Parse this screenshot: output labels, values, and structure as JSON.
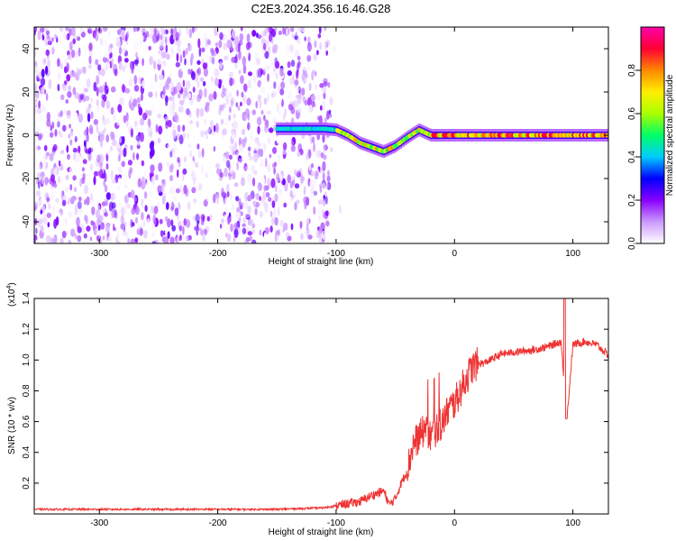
{
  "title": "C2E3.2024.356.16.46.G28",
  "chart_data": [
    {
      "type": "heatmap",
      "xlabel": "Height of straight line (km)",
      "ylabel": "Frequency (Hz)",
      "xlim": [
        -355,
        130
      ],
      "ylim": [
        -50,
        50
      ],
      "xticks": [
        -300,
        -200,
        -100,
        0,
        100
      ],
      "yticks": [
        -40,
        -20,
        0,
        20,
        40
      ],
      "colorbar": {
        "label": "Normalized spectral amplitude",
        "range": [
          0,
          1
        ],
        "ticks": [
          "0.0",
          "0.2",
          "0.4",
          "0.6",
          "0.8"
        ],
        "colors": [
          "#ffffff",
          "#cc99ff",
          "#8800ff",
          "#0000ff",
          "#00ccff",
          "#00ff66",
          "#aaff00",
          "#ffee00",
          "#ff8800",
          "#ff0033",
          "#ff00aa"
        ]
      },
      "noise_region": {
        "x": [
          -355,
          -105
        ],
        "y": [
          -50,
          50
        ],
        "amplitude": 0.15
      },
      "signal_track": [
        {
          "x": -150,
          "freq": 3
        },
        {
          "x": -120,
          "freq": 3
        },
        {
          "x": -110,
          "freq": 3
        },
        {
          "x": -100,
          "freq": 2.5
        },
        {
          "x": -90,
          "freq": 0
        },
        {
          "x": -80,
          "freq": -3.5
        },
        {
          "x": -70,
          "freq": -5.5
        },
        {
          "x": -60,
          "freq": -7.5
        },
        {
          "x": -50,
          "freq": -5
        },
        {
          "x": -40,
          "freq": -1
        },
        {
          "x": -30,
          "freq": 2.5
        },
        {
          "x": -20,
          "freq": 0
        },
        {
          "x": 0,
          "freq": 0
        },
        {
          "x": 50,
          "freq": 0
        },
        {
          "x": 100,
          "freq": 0
        },
        {
          "x": 130,
          "freq": 0
        }
      ]
    },
    {
      "type": "line",
      "xlabel": "Height of straight line (km)",
      "ylabel": "SNR (10 * v/v)",
      "scale_note": "(x10",
      "scale_exp": "4",
      "scale_close": ")",
      "xlim": [
        -355,
        130
      ],
      "ylim": [
        0,
        1.4
      ],
      "xticks": [
        -300,
        -200,
        -100,
        0,
        100
      ],
      "yticks": [
        "0.2",
        "0.4",
        "0.6",
        "0.8",
        "1.0",
        "1.2",
        "1.4"
      ],
      "series": [
        {
          "color": "#ee3333",
          "x": [
            -355,
            -300,
            -250,
            -200,
            -150,
            -110,
            -95,
            -80,
            -70,
            -60,
            -55,
            -50,
            -45,
            -40,
            -35,
            -30,
            -25,
            -20,
            -15,
            -10,
            -5,
            0,
            5,
            10,
            15,
            20,
            25,
            30,
            35,
            40,
            50,
            60,
            70,
            80,
            90,
            95,
            100,
            110,
            120,
            130
          ],
          "y": [
            0.03,
            0.03,
            0.03,
            0.03,
            0.03,
            0.04,
            0.06,
            0.08,
            0.12,
            0.15,
            0.06,
            0.1,
            0.2,
            0.28,
            0.45,
            0.5,
            0.55,
            0.5,
            0.55,
            0.6,
            0.68,
            0.72,
            0.8,
            0.88,
            0.95,
            0.98,
            0.98,
            1.0,
            1.02,
            1.04,
            1.05,
            1.06,
            1.07,
            1.09,
            1.12,
            0.62,
            1.1,
            1.12,
            1.1,
            1.03
          ]
        }
      ]
    }
  ]
}
